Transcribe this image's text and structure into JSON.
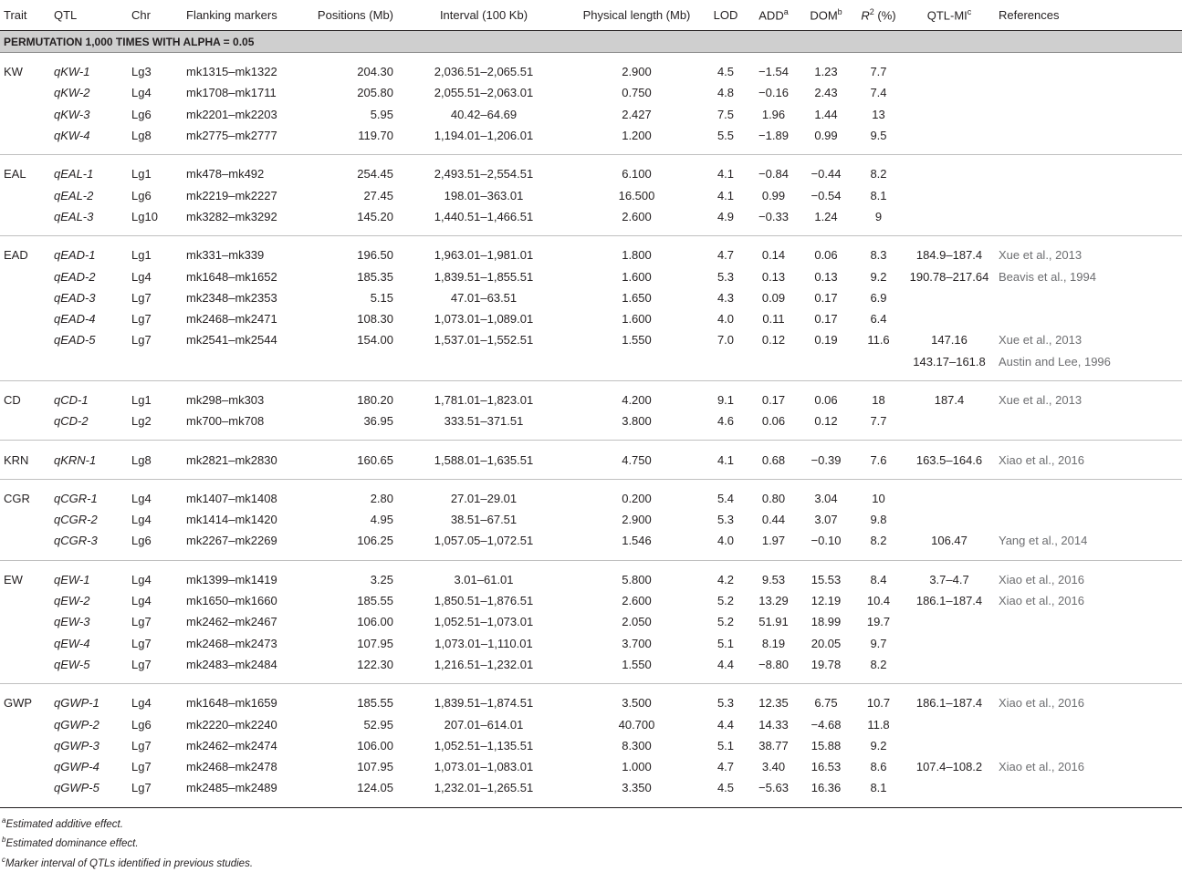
{
  "chart_data": {
    "type": "table",
    "columns": [
      "Trait",
      "QTL",
      "Chr",
      "Flanking markers",
      "Positions (Mb)",
      "Interval (100 Kb)",
      "Physical length (Mb)",
      "LOD",
      "ADD",
      "DOM",
      "R",
      "QTL-MI",
      "References"
    ],
    "column_sup": {
      "ADD": "a",
      "DOM": "b",
      "R": "2",
      "QTL-MI": "c"
    },
    "r2_suffix": " (%)",
    "section_label": "PERMUTATION 1,000 TIMES WITH ALPHA = 0.05",
    "groups": [
      {
        "trait": "KW",
        "rows": [
          [
            "qKW-1",
            "Lg3",
            "mk1315–mk1322",
            "204.30",
            "2,036.51–2,065.51",
            "2.900",
            "4.5",
            "−1.54",
            "1.23",
            "7.7",
            "",
            ""
          ],
          [
            "qKW-2",
            "Lg4",
            "mk1708–mk1711",
            "205.80",
            "2,055.51–2,063.01",
            "0.750",
            "4.8",
            "−0.16",
            "2.43",
            "7.4",
            "",
            ""
          ],
          [
            "qKW-3",
            "Lg6",
            "mk2201–mk2203",
            "5.95",
            "40.42–64.69",
            "2.427",
            "7.5",
            "1.96",
            "1.44",
            "13",
            "",
            ""
          ],
          [
            "qKW-4",
            "Lg8",
            "mk2775–mk2777",
            "119.70",
            "1,194.01–1,206.01",
            "1.200",
            "5.5",
            "−1.89",
            "0.99",
            "9.5",
            "",
            ""
          ]
        ]
      },
      {
        "trait": "EAL",
        "rows": [
          [
            "qEAL-1",
            "Lg1",
            "mk478–mk492",
            "254.45",
            "2,493.51–2,554.51",
            "6.100",
            "4.1",
            "−0.84",
            "−0.44",
            "8.2",
            "",
            ""
          ],
          [
            "qEAL-2",
            "Lg6",
            "mk2219–mk2227",
            "27.45",
            "198.01–363.01",
            "16.500",
            "4.1",
            "0.99",
            "−0.54",
            "8.1",
            "",
            ""
          ],
          [
            "qEAL-3",
            "Lg10",
            "mk3282–mk3292",
            "145.20",
            "1,440.51–1,466.51",
            "2.600",
            "4.9",
            "−0.33",
            "1.24",
            "9",
            "",
            ""
          ]
        ]
      },
      {
        "trait": "EAD",
        "rows": [
          [
            "qEAD-1",
            "Lg1",
            "mk331–mk339",
            "196.50",
            "1,963.01–1,981.01",
            "1.800",
            "4.7",
            "0.14",
            "0.06",
            "8.3",
            "184.9–187.4",
            "Xue et al., 2013"
          ],
          [
            "qEAD-2",
            "Lg4",
            "mk1648–mk1652",
            "185.35",
            "1,839.51–1,855.51",
            "1.600",
            "5.3",
            "0.13",
            "0.13",
            "9.2",
            "190.78–217.64",
            "Beavis et al., 1994"
          ],
          [
            "qEAD-3",
            "Lg7",
            "mk2348–mk2353",
            "5.15",
            "47.01–63.51",
            "1.650",
            "4.3",
            "0.09",
            "0.17",
            "6.9",
            "",
            ""
          ],
          [
            "qEAD-4",
            "Lg7",
            "mk2468–mk2471",
            "108.30",
            "1,073.01–1,089.01",
            "1.600",
            "4.0",
            "0.11",
            "0.17",
            "6.4",
            "",
            ""
          ],
          [
            "qEAD-5",
            "Lg7",
            "mk2541–mk2544",
            "154.00",
            "1,537.01–1,552.51",
            "1.550",
            "7.0",
            "0.12",
            "0.19",
            "11.6",
            "147.16",
            "Xue et al., 2013"
          ],
          [
            "",
            "",
            "",
            "",
            "",
            "",
            "",
            "",
            "",
            "",
            "143.17–161.8",
            "Austin and Lee, 1996"
          ]
        ]
      },
      {
        "trait": "CD",
        "rows": [
          [
            "qCD-1",
            "Lg1",
            "mk298–mk303",
            "180.20",
            "1,781.01–1,823.01",
            "4.200",
            "9.1",
            "0.17",
            "0.06",
            "18",
            "187.4",
            "Xue et al., 2013"
          ],
          [
            "qCD-2",
            "Lg2",
            "mk700–mk708",
            "36.95",
            "333.51–371.51",
            "3.800",
            "4.6",
            "0.06",
            "0.12",
            "7.7",
            "",
            ""
          ]
        ]
      },
      {
        "trait": "KRN",
        "rows": [
          [
            "qKRN-1",
            "Lg8",
            "mk2821–mk2830",
            "160.65",
            "1,588.01–1,635.51",
            "4.750",
            "4.1",
            "0.68",
            "−0.39",
            "7.6",
            "163.5–164.6",
            "Xiao et al., 2016"
          ]
        ]
      },
      {
        "trait": "CGR",
        "rows": [
          [
            "qCGR-1",
            "Lg4",
            "mk1407–mk1408",
            "2.80",
            "27.01–29.01",
            "0.200",
            "5.4",
            "0.80",
            "3.04",
            "10",
            "",
            ""
          ],
          [
            "qCGR-2",
            "Lg4",
            "mk1414–mk1420",
            "4.95",
            "38.51–67.51",
            "2.900",
            "5.3",
            "0.44",
            "3.07",
            "9.8",
            "",
            ""
          ],
          [
            "qCGR-3",
            "Lg6",
            "mk2267–mk2269",
            "106.25",
            "1,057.05–1,072.51",
            "1.546",
            "4.0",
            "1.97",
            "−0.10",
            "8.2",
            "106.47",
            "Yang et al., 2014"
          ]
        ]
      },
      {
        "trait": "EW",
        "rows": [
          [
            "qEW-1",
            "Lg4",
            "mk1399–mk1419",
            "3.25",
            "3.01–61.01",
            "5.800",
            "4.2",
            "9.53",
            "15.53",
            "8.4",
            "3.7–4.7",
            "Xiao et al., 2016"
          ],
          [
            "qEW-2",
            "Lg4",
            "mk1650–mk1660",
            "185.55",
            "1,850.51–1,876.51",
            "2.600",
            "5.2",
            "13.29",
            "12.19",
            "10.4",
            "186.1–187.4",
            "Xiao et al., 2016"
          ],
          [
            "qEW-3",
            "Lg7",
            "mk2462–mk2467",
            "106.00",
            "1,052.51–1,073.01",
            "2.050",
            "5.2",
            "51.91",
            "18.99",
            "19.7",
            "",
            ""
          ],
          [
            "qEW-4",
            "Lg7",
            "mk2468–mk2473",
            "107.95",
            "1,073.01–1,110.01",
            "3.700",
            "5.1",
            "8.19",
            "20.05",
            "9.7",
            "",
            ""
          ],
          [
            "qEW-5",
            "Lg7",
            "mk2483–mk2484",
            "122.30",
            "1,216.51–1,232.01",
            "1.550",
            "4.4",
            "−8.80",
            "19.78",
            "8.2",
            "",
            ""
          ]
        ]
      },
      {
        "trait": "GWP",
        "rows": [
          [
            "qGWP-1",
            "Lg4",
            "mk1648–mk1659",
            "185.55",
            "1,839.51–1,874.51",
            "3.500",
            "5.3",
            "12.35",
            "6.75",
            "10.7",
            "186.1–187.4",
            "Xiao et al., 2016"
          ],
          [
            "qGWP-2",
            "Lg6",
            "mk2220–mk2240",
            "52.95",
            "207.01–614.01",
            "40.700",
            "4.4",
            "14.33",
            "−4.68",
            "11.8",
            "",
            ""
          ],
          [
            "qGWP-3",
            "Lg7",
            "mk2462–mk2474",
            "106.00",
            "1,052.51–1,135.51",
            "8.300",
            "5.1",
            "38.77",
            "15.88",
            "9.2",
            "",
            ""
          ],
          [
            "qGWP-4",
            "Lg7",
            "mk2468–mk2478",
            "107.95",
            "1,073.01–1,083.01",
            "1.000",
            "4.7",
            "3.40",
            "16.53",
            "8.6",
            "107.4–108.2",
            "Xiao et al., 2016"
          ],
          [
            "qGWP-5",
            "Lg7",
            "mk2485–mk2489",
            "124.05",
            "1,232.01–1,265.51",
            "3.350",
            "4.5",
            "−5.63",
            "16.36",
            "8.1",
            "",
            ""
          ]
        ]
      }
    ],
    "footnotes": [
      {
        "mark": "a",
        "text": "Estimated additive effect."
      },
      {
        "mark": "b",
        "text": "Estimated dominance effect."
      },
      {
        "mark": "c",
        "text": "Marker interval of QTLs identified in previous studies."
      }
    ]
  }
}
